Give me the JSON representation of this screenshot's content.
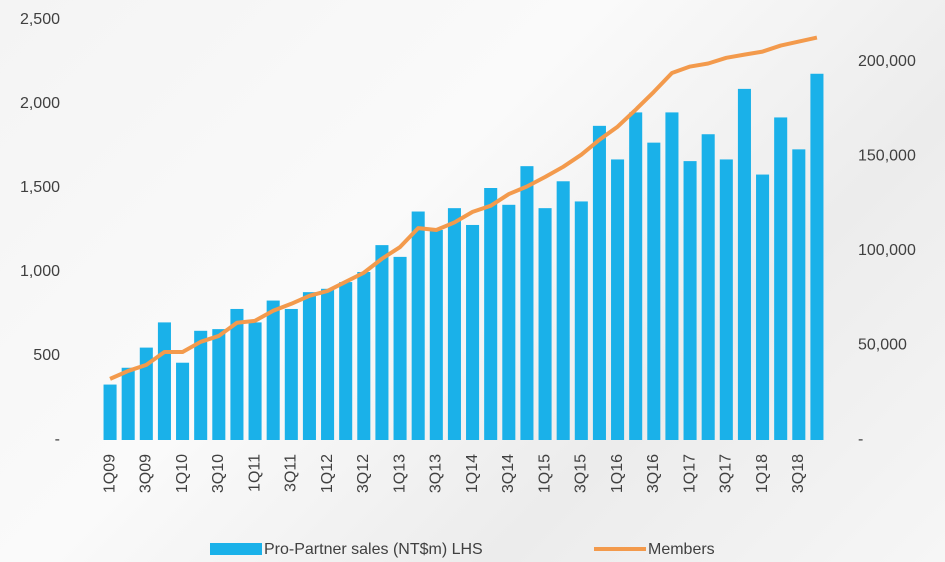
{
  "chart_data": {
    "type": "bar-line",
    "categories": [
      "1Q09",
      null,
      "3Q09",
      null,
      "1Q10",
      null,
      "3Q10",
      null,
      "1Q11",
      null,
      "3Q11",
      null,
      "1Q12",
      null,
      "3Q12",
      null,
      "1Q13",
      null,
      "3Q13",
      null,
      "1Q14",
      null,
      "3Q14",
      null,
      "1Q15",
      null,
      "3Q15",
      null,
      "1Q16",
      null,
      "3Q16",
      null,
      "1Q17",
      null,
      "3Q17",
      null,
      "1Q18",
      null,
      "3Q18",
      null
    ],
    "series": [
      {
        "name": "Pro-Partner sales (NT$m) LHS",
        "type": "bar",
        "color": "#1ab1e9",
        "values": [
          330,
          430,
          550,
          700,
          460,
          650,
          660,
          780,
          700,
          830,
          780,
          880,
          900,
          940,
          1000,
          1160,
          1090,
          1360,
          1250,
          1380,
          1280,
          1500,
          1400,
          1630,
          1380,
          1540,
          1420,
          1870,
          1670,
          1950,
          1770,
          1950,
          1660,
          1820,
          1670,
          2090,
          1580,
          1920,
          1730,
          2180
        ]
      },
      {
        "name": "Members",
        "type": "line",
        "axis": "y2",
        "color": "#f39a4c",
        "values": [
          32300,
          36500,
          39700,
          46500,
          46500,
          51900,
          55000,
          62000,
          63000,
          68300,
          72000,
          76200,
          78800,
          83600,
          88400,
          95800,
          102000,
          112000,
          111000,
          115000,
          120600,
          123800,
          130000,
          134000,
          139000,
          144400,
          150800,
          158700,
          165600,
          174600,
          184000,
          194000,
          197400,
          199000,
          202000,
          203700,
          205300,
          208500,
          210600,
          212700
        ]
      }
    ],
    "ylim": [
      0,
      2500
    ],
    "yticks": [
      {
        "value": 0,
        "label": "-"
      },
      500,
      {
        "value": 1000,
        "label": "1,000"
      },
      {
        "value": 1500,
        "label": "1,500"
      },
      {
        "value": 2000,
        "label": "2,000"
      },
      {
        "value": 2500,
        "label": "2,500"
      }
    ],
    "y2lim": [
      0,
      222000
    ],
    "y2ticks": [
      {
        "value": 0,
        "label": "-"
      },
      {
        "value": 50000,
        "label": "50,000"
      },
      {
        "value": 100000,
        "label": "100,000"
      },
      {
        "value": 150000,
        "label": "150,000"
      },
      {
        "value": 200000,
        "label": "200,000"
      }
    ],
    "grid": false,
    "legend": "bottom"
  }
}
